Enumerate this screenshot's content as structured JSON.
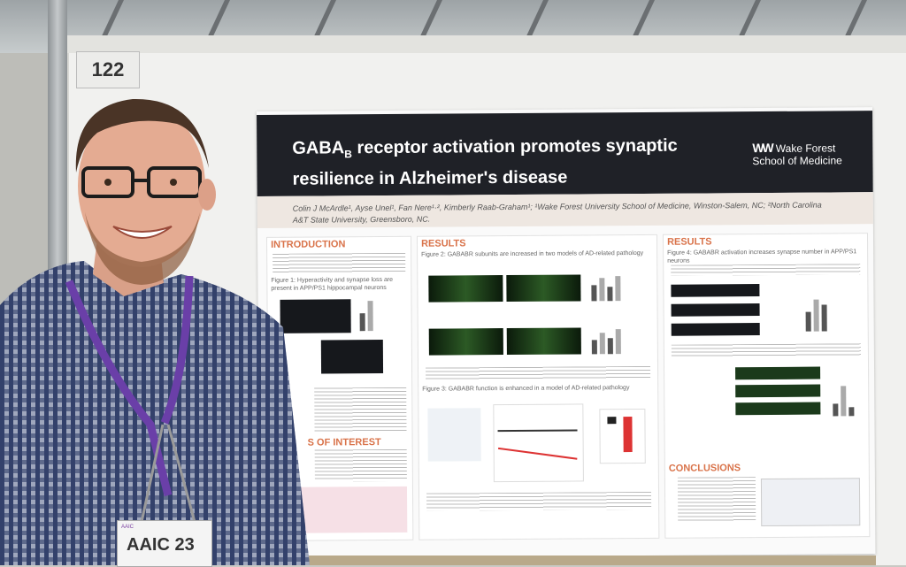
{
  "booth": {
    "number": "122"
  },
  "poster": {
    "title_line1": "GABA",
    "title_sub": "B",
    "title_rest": " receptor activation promotes synaptic",
    "title_line2": "resilience in Alzheimer's disease",
    "logo_line1": "Wake Forest",
    "logo_line2": "School of Medicine",
    "authors": "Colin J McArdle¹, Ayse Unel¹, Fan Nere¹·², Kimberly Raab-Graham¹; ¹Wake Forest University School of Medicine, Winston-Salem, NC; ²North Carolina A&T State University, Greensboro, NC.",
    "intro_head": "INTRODUCTION",
    "intro_fig": "Figure 1: Hyperactivity and synapse loss are present in APP/PS1 hippocampal neurons",
    "interest_head": "S OF INTEREST",
    "results_head": "RESULTS",
    "results_fig2": "Figure 2: GABABR subunits are increased in two models of AD-related pathology",
    "results_fig3": "Figure 3: GABABR function is enhanced in a model of AD-related pathology",
    "results2_head": "RESULTS",
    "results_fig4": "Figure 4: GABABR activation increases synapse number in APP/PS1 neurons",
    "conclusions_head": "CONCLUSIONS"
  },
  "badge": {
    "event": "AAIC 23"
  }
}
